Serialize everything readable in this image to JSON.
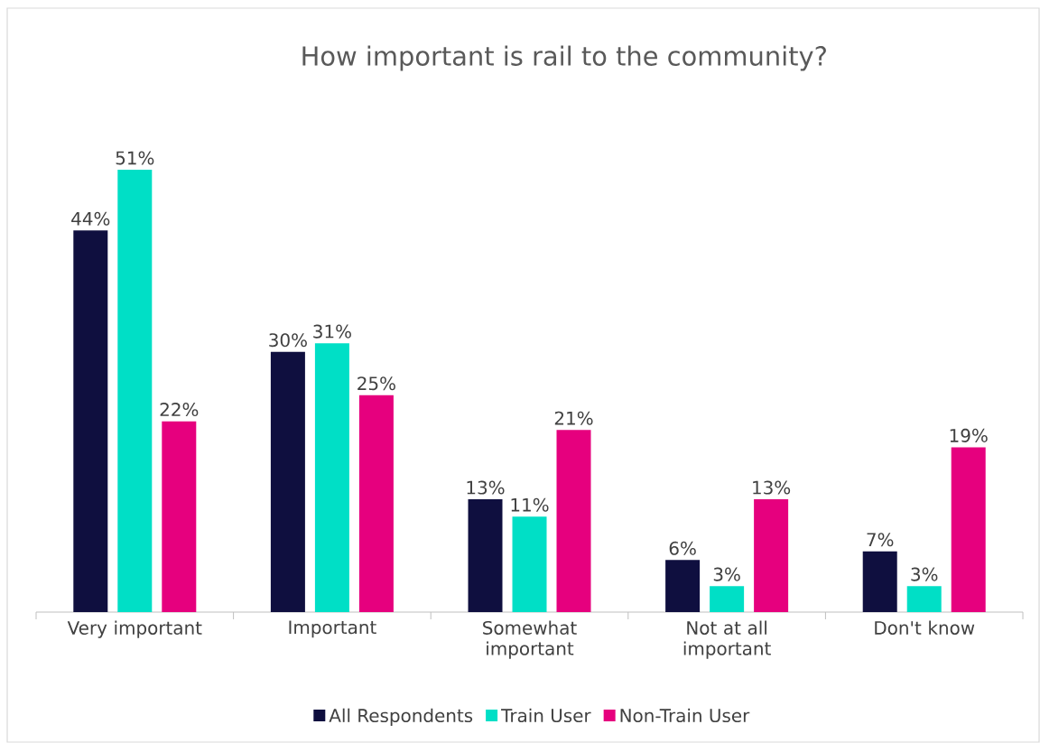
{
  "chart_data": {
    "type": "bar",
    "title": "How important is rail to the community?",
    "categories": [
      "Very important",
      "Important",
      "Somewhat important",
      "Not at all important",
      "Don't know"
    ],
    "series": [
      {
        "name": "All Respondents",
        "color": "#0f0f3f",
        "values": [
          44,
          30,
          13,
          6,
          7
        ],
        "value_labels": [
          "44%",
          "30%",
          "13%",
          "6%",
          "7%"
        ]
      },
      {
        "name": "Train User",
        "color": "#00dfc6",
        "values": [
          51,
          31,
          11,
          3,
          3
        ],
        "value_labels": [
          "51%",
          "31%",
          "11%",
          "3%",
          "3%"
        ]
      },
      {
        "name": "Non-Train User",
        "color": "#e6007e",
        "values": [
          22,
          25,
          21,
          13,
          19
        ],
        "value_labels": [
          "22%",
          "25%",
          "21%",
          "13%",
          "19%"
        ]
      }
    ],
    "tick_labels": "x",
    "legend": "bottom"
  }
}
